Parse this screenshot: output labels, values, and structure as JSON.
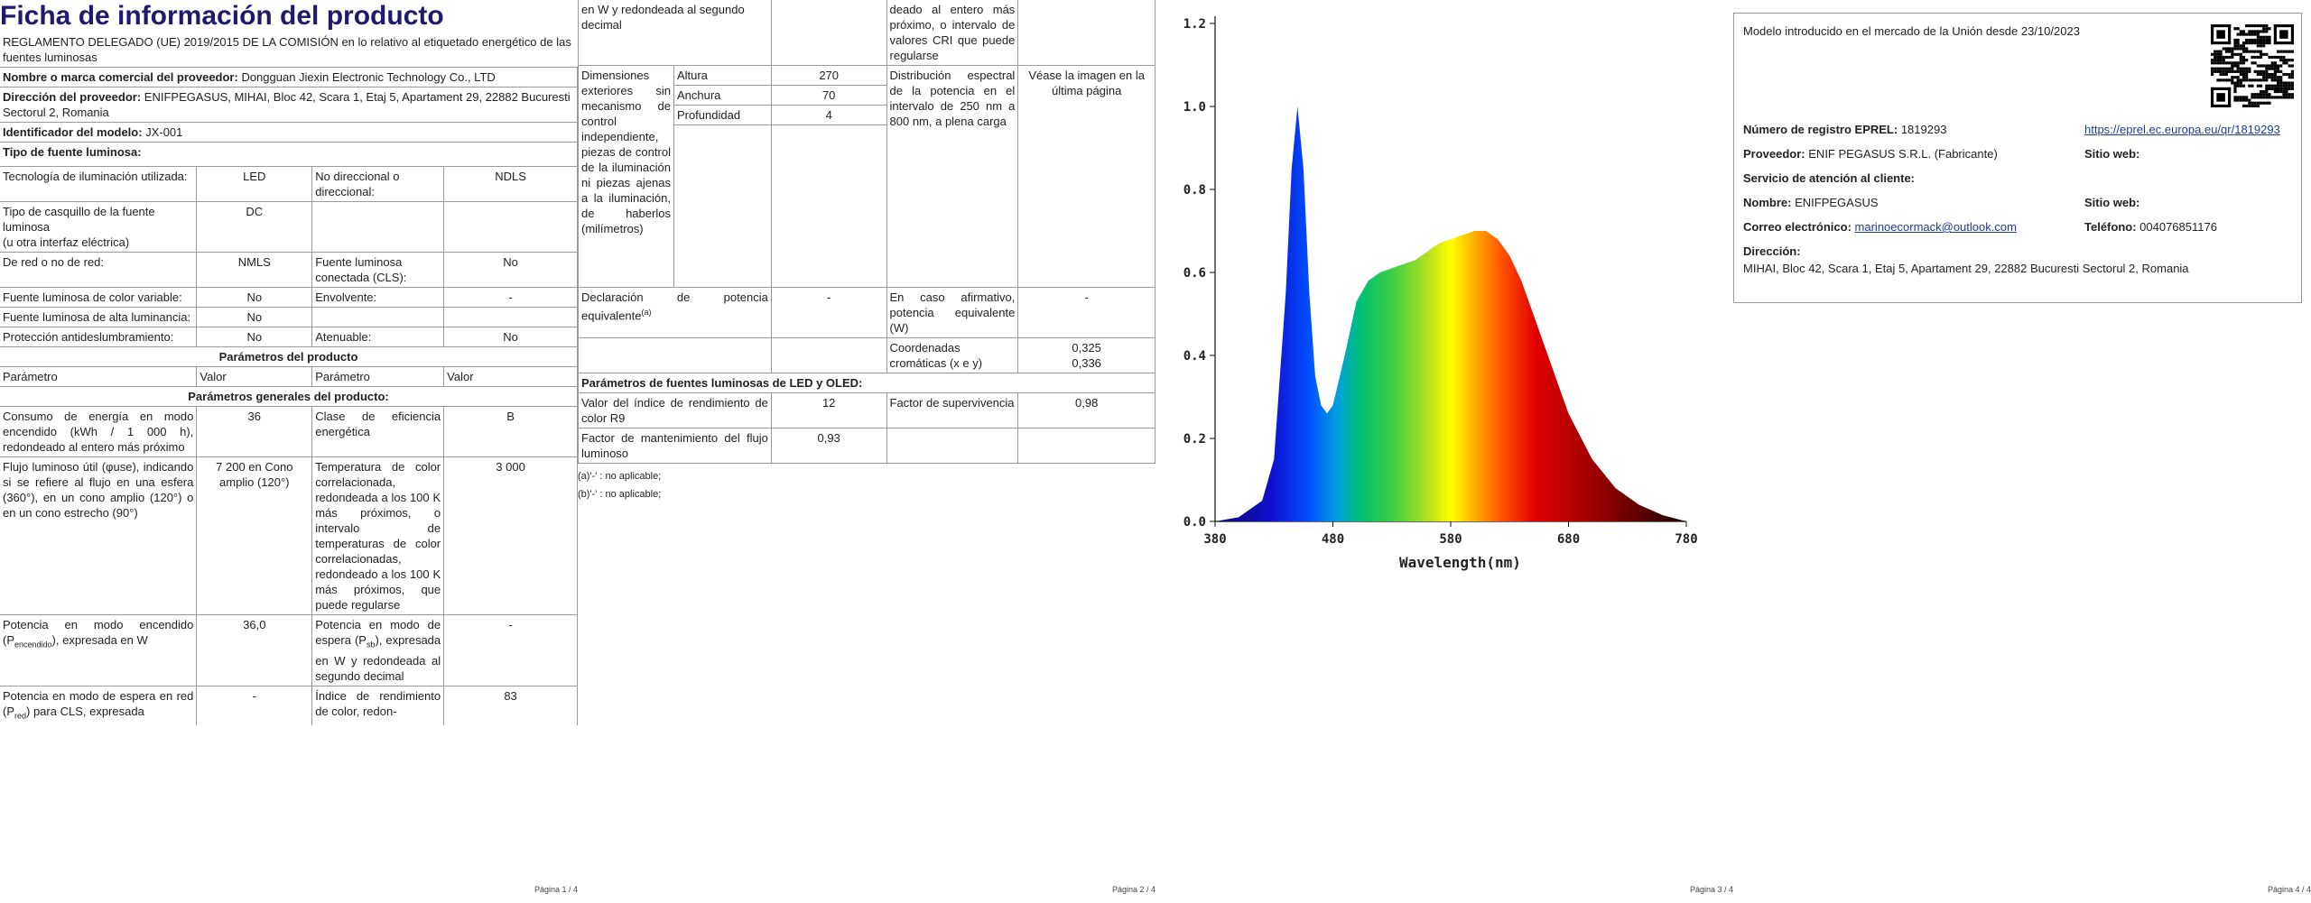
{
  "page1": {
    "title": "Ficha de información del producto",
    "regulation": "REGLAMENTO DELEGADO (UE) 2019/2015 DE LA COMISIÓN en lo relativo al etiquetado energético de las fuentes luminosas",
    "supplier_name_label": "Nombre o marca comercial del proveedor:",
    "supplier_name": "Dongguan Jiexin Electronic Technology Co., LTD",
    "supplier_address_label": "Dirección del proveedor:",
    "supplier_address": "ENIFPEGASUS, MIHAI, Bloc 42, Scara 1, Etaj 5, Apartament 29, 22882 Bucuresti Sectorul 2, Romania",
    "model_id_label": "Identificador del modelo:",
    "model_id": "JX-001",
    "light_source_type_label": "Tipo de fuente luminosa:",
    "lighting_tech_label": "Tecnología de iluminación utilizada:",
    "lighting_tech": "LED",
    "non_directional_label": "No direccional o direccional:",
    "non_directional": "NDLS",
    "cap_type_label": "Tipo de casquillo de la fuente luminosa",
    "cap_type_sub": "(u otra interfaz eléctrica)",
    "cap_type": "DC",
    "mains_label": "De red o no de red:",
    "mains": "NMLS",
    "connected_label": "Fuente luminosa conectada (CLS):",
    "connected": "No",
    "colour_tunable_label": "Fuente luminosa de color variable:",
    "colour_tunable": "No",
    "envelope_label": "Envolvente:",
    "envelope": "-",
    "high_lum_label": "Fuente luminosa de alta luminancia:",
    "high_lum": "No",
    "antiglare_label": "Protección antideslumbramiento:",
    "antiglare": "No",
    "dimmable_label": "Atenuable:",
    "dimmable": "No",
    "product_params_header": "Parámetros del producto",
    "col_param": "Parámetro",
    "col_value": "Valor",
    "general_params_header": "Parámetros generales del producto:",
    "energy_label": "Consumo de energía en modo encendido (kWh / 1 000 h), redondeado al entero más próximo",
    "energy": "36",
    "eff_class_label": "Clase de eficiencia energética",
    "eff_class": "B",
    "flux_label": "Flujo luminoso útil (φuse), indicando si se refiere al flujo en una esfera (360°), en un cono amplio (120°) o en un cono estrecho (90°)",
    "flux": "7 200 en Cono amplio (120°)",
    "cct_label": "Temperatura de color correlacionada, redondeada a los 100 K más próximos, o intervalo de temperaturas de color correlacionadas, redondeado a los 100 K más próximos, que puede regularse",
    "cct": "3 000",
    "on_power_label_a": "Potencia en modo encendido (P",
    "on_power_label_sub": "encendido",
    "on_power_label_b": "), expresada en W",
    "on_power": "36,0",
    "standby_label_a": "Potencia en modo de espera (P",
    "standby_label_sub": "sb",
    "standby_label_b": "), expresada en W y redondeada al segundo decimal",
    "standby": "-",
    "networked_label_a": "Potencia en modo de espera en red (P",
    "networked_label_sub": "red",
    "networked_label_b": ") para CLS, expresada",
    "networked": "-",
    "cri_label": "Índice de rendimiento de color, redon-",
    "cri": "83",
    "page_number": "Página 1 / 4"
  },
  "page2": {
    "carry_label": "en W y redondeada al segundo decimal",
    "carry_cri_label": "deado al entero más próximo, o intervalo de valores CRI que puede regularse",
    "dims_label": "Dimensiones exteriores sin mecanismo de control independiente, piezas de control de la iluminación ni piezas ajenas a la iluminación, de haberlos (milímetros)",
    "height_label": "Altura",
    "height": "270",
    "width_label": "Anchura",
    "width": "70",
    "depth_label": "Profundidad",
    "depth": "4",
    "spectral_label": "Distribución espectral de la potencia en el intervalo de 250 nm a 800 nm, a plena carga",
    "spectral": "Véase la imagen en la última página",
    "equiv_claim_label": "Declaración de potencia equivalente",
    "equiv_claim_sup": "(a)",
    "equiv_claim": "-",
    "equiv_power_label": "En caso afirmativo, potencia equivalente (W)",
    "equiv_power": "-",
    "chroma_label": "Coordenadas cromáticas (x e y)",
    "chroma_x": "0,325",
    "chroma_y": "0,336",
    "led_header": "Parámetros de fuentes luminosas de LED y OLED:",
    "r9_label": "Valor del índice de rendimiento de color R9",
    "r9": "12",
    "survival_label": "Factor de supervivencia",
    "survival": "0,98",
    "maint_label": "Factor de mantenimiento del flujo luminoso",
    "maint": "0,93",
    "note_a": "(a)'-' : no aplicable;",
    "note_b": "(b)'-' : no aplicable;",
    "page_number": "Página 2 / 4"
  },
  "page3": {
    "page_number": "Página 3 / 4"
  },
  "chart_data": {
    "type": "area",
    "title": "",
    "xlabel": "Wavelength(nm)",
    "ylabel": "",
    "xlim": [
      380,
      780
    ],
    "ylim": [
      0.0,
      1.2
    ],
    "x_ticks": [
      "380",
      "480",
      "580",
      "680",
      "780"
    ],
    "y_ticks": [
      "0.0",
      "0.2",
      "0.4",
      "0.6",
      "0.8",
      "1.0",
      "1.2"
    ],
    "x": [
      380,
      400,
      420,
      430,
      440,
      445,
      450,
      455,
      460,
      465,
      470,
      475,
      480,
      490,
      500,
      510,
      520,
      530,
      540,
      550,
      560,
      570,
      580,
      590,
      600,
      610,
      620,
      630,
      640,
      650,
      660,
      670,
      680,
      700,
      720,
      740,
      760,
      780
    ],
    "values": [
      0.0,
      0.01,
      0.05,
      0.15,
      0.55,
      0.85,
      1.0,
      0.85,
      0.55,
      0.35,
      0.28,
      0.26,
      0.28,
      0.4,
      0.53,
      0.58,
      0.6,
      0.61,
      0.62,
      0.63,
      0.65,
      0.67,
      0.68,
      0.69,
      0.7,
      0.7,
      0.68,
      0.64,
      0.58,
      0.5,
      0.42,
      0.34,
      0.26,
      0.15,
      0.08,
      0.04,
      0.015,
      0.0
    ]
  },
  "page4": {
    "market_date_text": "Modelo introducido en el mercado de la Unión desde 23/10/2023",
    "eprel_label": "Número de registro EPREL:",
    "eprel": "1819293",
    "eprel_url": "https://eprel.ec.europa.eu/qr/1819293",
    "supplier_label": "Proveedor:",
    "supplier": "ENIF PEGASUS S.R.L. (Fabricante)",
    "website_label": "Sitio web:",
    "service_label": "Servicio de atención al cliente:",
    "name_label": "Nombre:",
    "name": "ENIFPEGASUS",
    "website2_label": "Sitio web:",
    "email_label": "Correo electrónico:",
    "email": "marinoecormack@outlook.com",
    "phone_label": "Teléfono:",
    "phone": "004076851176",
    "address_label": "Dirección:",
    "address": "MIHAI, Bloc 42, Scara 1, Etaj 5, Apartament 29, 22882 Bucuresti Sectorul 2, Romania",
    "page_number": "Página 4 / 4"
  },
  "icons": {
    "qr": "qr-code-icon"
  }
}
